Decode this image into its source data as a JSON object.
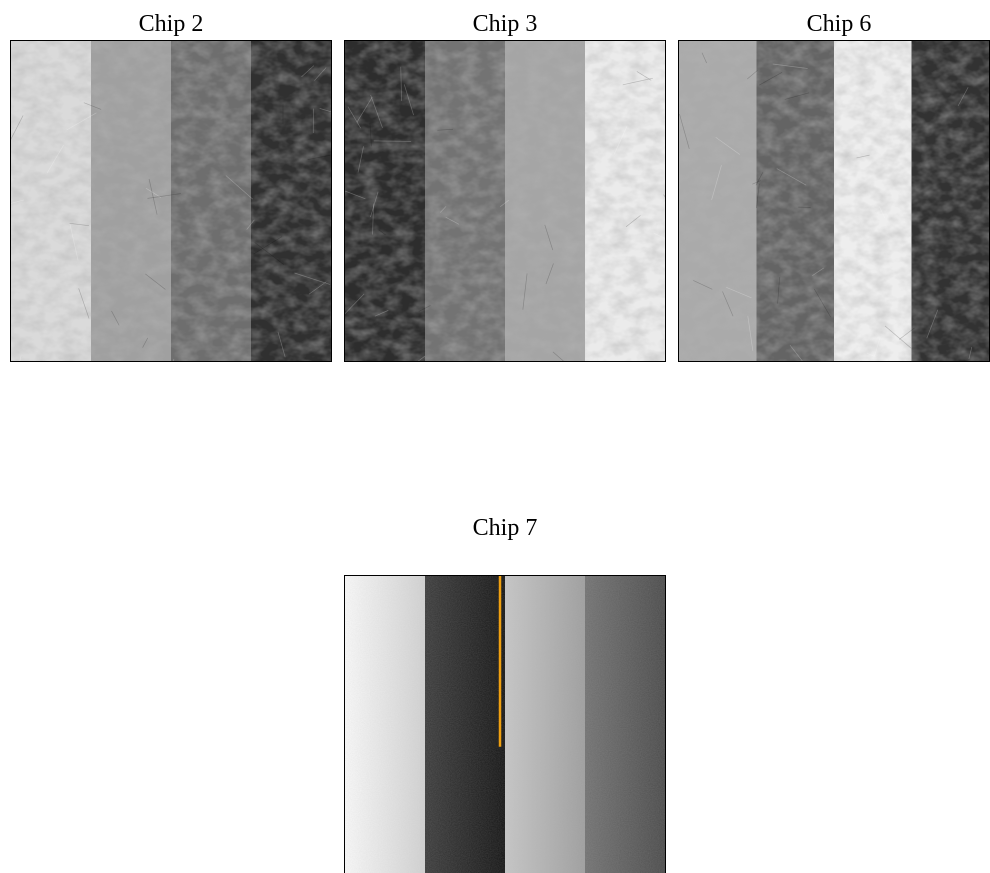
{
  "figure": {
    "panels": [
      {
        "id": "chip2",
        "label": "Chip 2",
        "band_gray": [
          218,
          160,
          110,
          48
        ],
        "style": "mottled"
      },
      {
        "id": "chip3",
        "label": "Chip 3",
        "band_gray": [
          45,
          115,
          165,
          235
        ],
        "style": "mottled"
      },
      {
        "id": "chip6",
        "label": "Chip 6",
        "band_gray": [
          170,
          100,
          238,
          50
        ],
        "style": "mottled"
      },
      {
        "id": "chip7",
        "label": "Chip 7",
        "band_gray": [
          232,
          40,
          180,
          95
        ],
        "style": "gradient",
        "marker_color": "#f0a010"
      }
    ]
  }
}
